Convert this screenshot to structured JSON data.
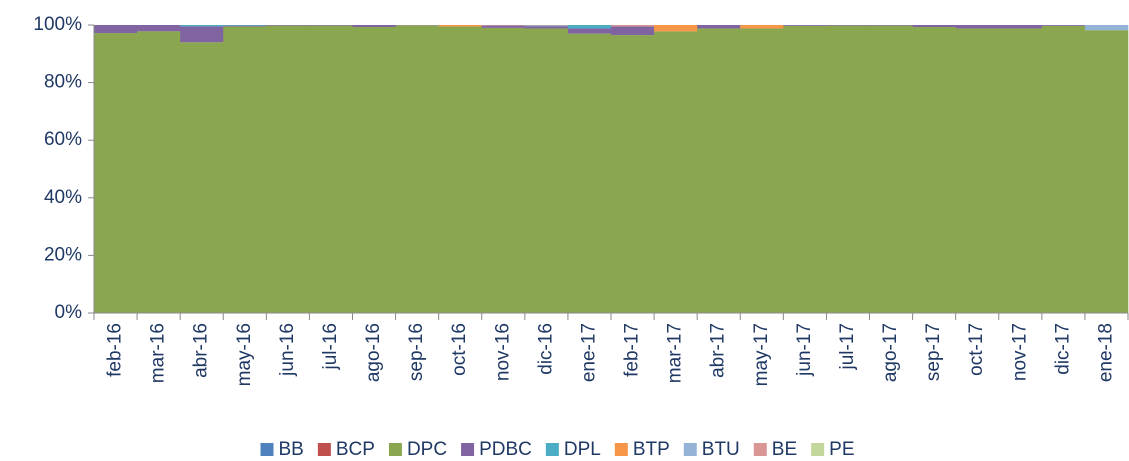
{
  "chart_data": {
    "type": "stacked_bar",
    "categories": [
      "feb-16",
      "mar-16",
      "abr-16",
      "may-16",
      "jun-16",
      "jul-16",
      "ago-16",
      "sep-16",
      "oct-16",
      "nov-16",
      "dic-16",
      "ene-17",
      "feb-17",
      "mar-17",
      "abr-17",
      "may-17",
      "jun-17",
      "jul-17",
      "ago-17",
      "sep-17",
      "oct-17",
      "nov-17",
      "dic-17",
      "ene-18"
    ],
    "series": [
      {
        "name": "BB",
        "color": "#4f81bd",
        "values": [
          0,
          0,
          0,
          0,
          0,
          0,
          0,
          0,
          0,
          0,
          0,
          0,
          0,
          0,
          0,
          0,
          0,
          0,
          0,
          0,
          0,
          0,
          0,
          0
        ]
      },
      {
        "name": "BCP",
        "color": "#c0504d",
        "values": [
          0,
          0,
          0,
          0,
          0,
          0,
          0,
          0,
          0,
          0,
          0,
          0,
          0,
          0,
          0,
          0,
          0,
          0,
          0,
          0,
          0,
          0,
          0,
          0
        ]
      },
      {
        "name": "DPC",
        "color": "#8aa64f",
        "values": [
          97.2,
          97.8,
          94,
          99.5,
          99.8,
          99.8,
          99.3,
          99.9,
          99.5,
          99.0,
          98.8,
          97.0,
          96.5,
          97.8,
          98.8,
          98.8,
          99.7,
          99.8,
          99.8,
          99.3,
          98.8,
          98.8,
          99.7,
          98.2
        ]
      },
      {
        "name": "PDBC",
        "color": "#8064a2",
        "values": [
          2.8,
          2.2,
          5.5,
          0.3,
          0.2,
          0.2,
          0.7,
          0.1,
          0,
          0.8,
          0.8,
          1.8,
          3.0,
          0,
          1.2,
          0,
          0.3,
          0.2,
          0.2,
          0.7,
          1.2,
          1.2,
          0.3,
          0
        ]
      },
      {
        "name": "DPL",
        "color": "#4bacc6",
        "values": [
          0,
          0,
          0.5,
          0.2,
          0,
          0,
          0,
          0,
          0,
          0,
          0.2,
          1.2,
          0,
          0,
          0,
          0,
          0,
          0,
          0,
          0,
          0,
          0,
          0,
          0
        ]
      },
      {
        "name": "BTP",
        "color": "#f79646",
        "values": [
          0,
          0,
          0,
          0,
          0,
          0,
          0,
          0,
          0.5,
          0,
          0,
          0,
          0,
          2.2,
          0,
          1.2,
          0,
          0,
          0,
          0,
          0,
          0,
          0,
          0
        ]
      },
      {
        "name": "BTU",
        "color": "#95b3d7",
        "values": [
          0,
          0,
          0,
          0,
          0,
          0,
          0,
          0,
          0,
          0,
          0,
          0,
          0,
          0,
          0,
          0,
          0,
          0,
          0,
          0,
          0,
          0,
          0,
          1.8
        ]
      },
      {
        "name": "BE",
        "color": "#d99694",
        "values": [
          0,
          0,
          0,
          0,
          0,
          0,
          0,
          0,
          0,
          0.2,
          0.2,
          0,
          0.5,
          0,
          0,
          0,
          0,
          0,
          0,
          0,
          0,
          0,
          0,
          0
        ]
      },
      {
        "name": "PE",
        "color": "#c3d69b",
        "values": [
          0,
          0,
          0,
          0,
          0,
          0,
          0,
          0,
          0,
          0,
          0,
          0,
          0,
          0,
          0,
          0,
          0,
          0,
          0,
          0,
          0,
          0,
          0,
          0
        ]
      }
    ],
    "ylim": [
      0,
      100
    ],
    "yticks": [
      {
        "value": 0,
        "label": "0%"
      },
      {
        "value": 20,
        "label": "20%"
      },
      {
        "value": 40,
        "label": "40%"
      },
      {
        "value": 60,
        "label": "60%"
      },
      {
        "value": 80,
        "label": "80%"
      },
      {
        "value": 100,
        "label": "100%"
      }
    ],
    "legend": "bottom"
  }
}
